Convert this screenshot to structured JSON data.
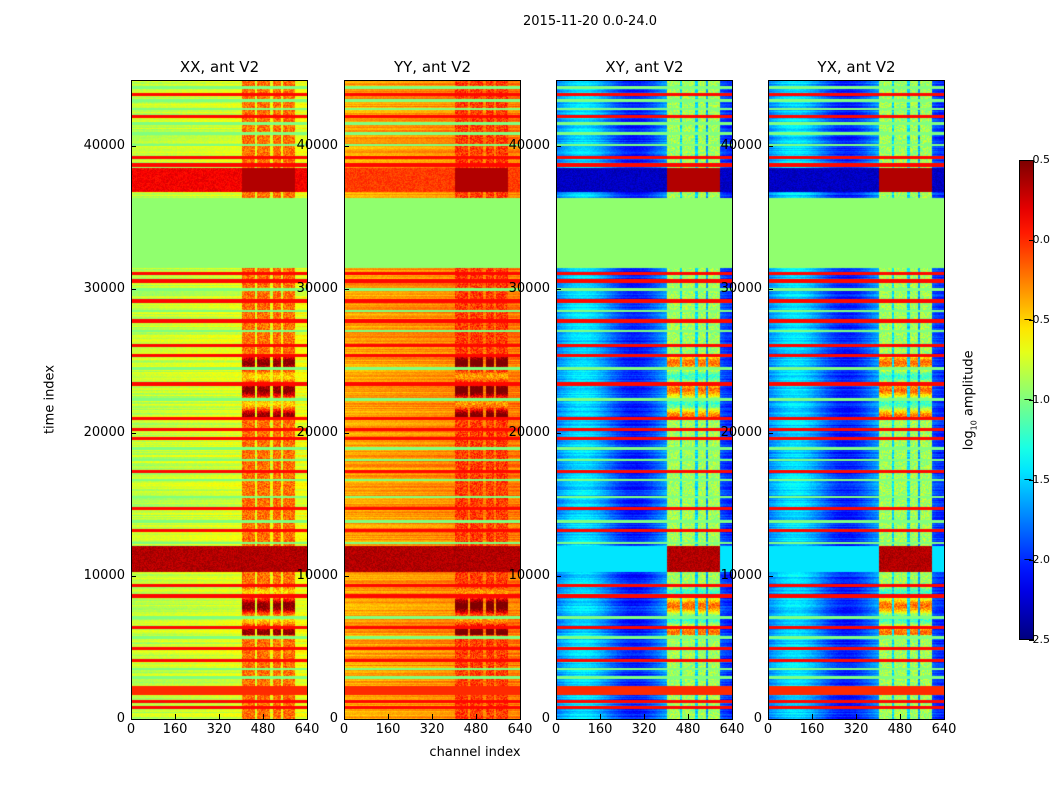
{
  "chart_data": {
    "type": "heatmap",
    "title": "2015-11-20 0.0-24.0",
    "xlabel": "channel index",
    "ylabel": "time index",
    "xlim": [
      0,
      640
    ],
    "ylim": [
      0,
      44700
    ],
    "xticks": [
      "0",
      "160",
      "320",
      "480",
      "640"
    ],
    "xtick_values": [
      0,
      160,
      320,
      480,
      640
    ],
    "yticks": [
      "0",
      "10000",
      "20000",
      "30000",
      "40000"
    ],
    "ytick_values": [
      0,
      10000,
      20000,
      30000,
      40000
    ],
    "colorbar": {
      "label": "log10 amplitude",
      "label_main": "log",
      "label_sub": "10",
      "label_rest": " amplitude",
      "range": [
        -2.5,
        0.5
      ],
      "colormap": "jet",
      "ticks": [
        "0.5",
        "0.0",
        "−0.5",
        "−1.0",
        "−1.5",
        "−2.0",
        "−2.5"
      ],
      "tick_values": [
        0.5,
        0.0,
        -0.5,
        -1.0,
        -1.5,
        -2.0,
        -2.5
      ]
    },
    "rfi_channels": [
      400,
      590
    ],
    "flagged_range": [
      31600,
      36500
    ],
    "panels": [
      {
        "title": "XX, ant V2",
        "base": -0.75,
        "rfi": -0.2,
        "bright_band": 0.15,
        "burst": 0.45
      },
      {
        "title": "YY, ant V2",
        "base": -0.3,
        "rfi": -0.05,
        "bright_band": -0.05,
        "burst": 0.45
      },
      {
        "title": "XY, ant V2",
        "base": -1.75,
        "rfi": -0.9,
        "bright_band": -2.3,
        "burst": 0.45
      },
      {
        "title": "YX, ant V2",
        "base": -1.75,
        "rfi": -0.9,
        "bright_band": -2.3,
        "burst": 0.45
      }
    ],
    "red_lines": [
      900,
      1300,
      2000,
      4200,
      5000,
      6500,
      8700,
      9400,
      13300,
      14800,
      17400,
      19700,
      20300,
      21100,
      23500,
      25500,
      26200,
      27900,
      29300,
      30700,
      31200,
      38800,
      39300,
      42200,
      43700
    ],
    "green_lines": [
      3000,
      3600,
      5800,
      7200,
      12400,
      13900,
      15600,
      16800,
      18200,
      19000,
      22400,
      24600,
      27200,
      28600,
      30100,
      37800,
      40200,
      41000,
      41700,
      42700,
      43300,
      44200
    ]
  }
}
